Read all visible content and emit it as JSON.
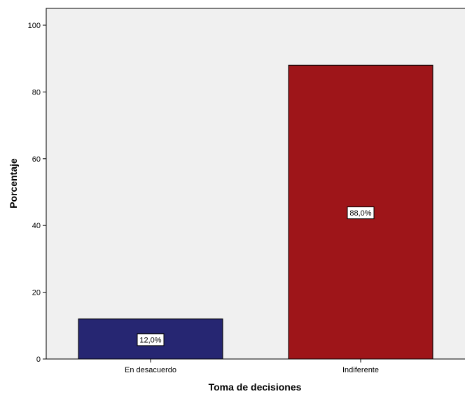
{
  "chart_data": {
    "type": "bar",
    "categories": [
      "En desacuerdo",
      "Indiferente"
    ],
    "values": [
      12.0,
      88.0
    ],
    "data_labels": [
      "12,0%",
      "88,0%"
    ],
    "bar_colors": [
      "#262672",
      "#9e1519"
    ],
    "plot_background": "#f0f0f0",
    "xlabel": "Toma de decisiones",
    "ylabel": "Porcentaje",
    "ylim": [
      0,
      100
    ],
    "yticks": [
      0,
      20,
      40,
      60,
      80,
      100
    ],
    "grid": false,
    "legend": "none"
  }
}
